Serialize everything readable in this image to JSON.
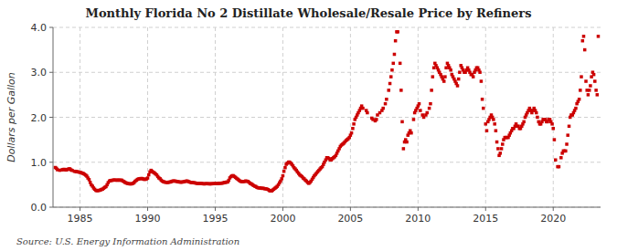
{
  "chart_data": {
    "type": "scatter",
    "title": "Monthly Florida No 2 Distillate Wholesale/Resale Price by Refiners",
    "y_label": "Dollars per Gallon",
    "annotation": "Source: U.S. Energy Information Administration",
    "color": "#cc0000",
    "marker": "square",
    "grid": true,
    "xlim": [
      1983.0,
      2023.5
    ],
    "xticks": [
      1985,
      1990,
      1995,
      2000,
      2005,
      2010,
      2015,
      2020
    ],
    "ylim": [
      0.0,
      4.0
    ],
    "yticks": [
      {
        "value": 0.0,
        "label": "0.0"
      },
      {
        "value": 1.0,
        "label": "1.0"
      },
      {
        "value": 2.0,
        "label": "2.0"
      },
      {
        "value": 3.0,
        "label": "3.0"
      },
      {
        "value": 4.0,
        "label": "4.0"
      }
    ],
    "x": [
      1983.17,
      1983.25,
      1983.33,
      1983.5,
      1983.67,
      1983.75,
      1983.83,
      1983.92,
      1984.0,
      1984.08,
      1984.17,
      1984.25,
      1984.33,
      1984.42,
      1984.58,
      1984.67,
      1984.75,
      1984.83,
      1984.92,
      1985.0,
      1985.08,
      1985.17,
      1985.25,
      1985.33,
      1985.42,
      1985.5,
      1985.58,
      1985.67,
      1985.75,
      1985.83,
      1985.92,
      1986.0,
      1986.08,
      1986.17,
      1986.25,
      1986.33,
      1986.42,
      1986.5,
      1986.58,
      1986.67,
      1986.75,
      1986.83,
      1986.92,
      1987.0,
      1987.08,
      1987.17,
      1987.25,
      1987.33,
      1987.42,
      1987.5,
      1987.58,
      1987.67,
      1987.75,
      1987.83,
      1987.92,
      1988.0,
      1988.08,
      1988.17,
      1988.25,
      1988.33,
      1988.42,
      1988.5,
      1988.58,
      1988.67,
      1988.75,
      1988.83,
      1988.92,
      1989.0,
      1989.08,
      1989.17,
      1989.25,
      1989.33,
      1989.42,
      1989.5,
      1989.58,
      1989.67,
      1989.75,
      1989.83,
      1989.92,
      1990.0,
      1990.08,
      1990.17,
      1990.25,
      1990.33,
      1990.42,
      1990.5,
      1990.58,
      1990.67,
      1990.75,
      1990.83,
      1990.92,
      1991.0,
      1991.08,
      1991.17,
      1991.25,
      1991.33,
      1991.42,
      1991.5,
      1991.58,
      1991.67,
      1991.75,
      1991.83,
      1991.92,
      1992.0,
      1992.08,
      1992.17,
      1992.25,
      1992.33,
      1992.42,
      1992.5,
      1992.58,
      1992.67,
      1992.75,
      1992.83,
      1992.92,
      1993.0,
      1993.08,
      1993.17,
      1993.25,
      1993.33,
      1993.42,
      1993.5,
      1993.58,
      1993.67,
      1993.75,
      1993.83,
      1993.92,
      1994.0,
      1994.08,
      1994.17,
      1994.25,
      1994.33,
      1994.42,
      1994.5,
      1994.58,
      1994.67,
      1994.75,
      1994.83,
      1994.92,
      1995.0,
      1995.08,
      1995.17,
      1995.25,
      1995.33,
      1995.42,
      1995.5,
      1995.58,
      1995.67,
      1995.75,
      1995.83,
      1995.92,
      1996.0,
      1996.08,
      1996.17,
      1996.25,
      1996.33,
      1996.42,
      1996.5,
      1996.58,
      1996.67,
      1996.75,
      1996.83,
      1996.92,
      1997.0,
      1997.08,
      1997.17,
      1997.25,
      1997.33,
      1997.42,
      1997.5,
      1997.58,
      1997.67,
      1997.75,
      1997.83,
      1997.92,
      1998.0,
      1998.08,
      1998.17,
      1998.25,
      1998.33,
      1998.42,
      1998.5,
      1998.58,
      1998.67,
      1998.75,
      1998.83,
      1998.92,
      1999.0,
      1999.08,
      1999.17,
      1999.25,
      1999.33,
      1999.42,
      1999.5,
      1999.58,
      1999.67,
      1999.75,
      1999.83,
      1999.92,
      2000.0,
      2000.08,
      2000.17,
      2000.25,
      2000.33,
      2000.42,
      2000.5,
      2000.58,
      2000.67,
      2000.75,
      2000.83,
      2000.92,
      2001.0,
      2001.08,
      2001.17,
      2001.25,
      2001.33,
      2001.42,
      2001.5,
      2001.58,
      2001.67,
      2001.75,
      2001.83,
      2001.92,
      2002.0,
      2002.08,
      2002.17,
      2002.25,
      2002.33,
      2002.42,
      2002.5,
      2002.58,
      2002.67,
      2002.75,
      2002.83,
      2002.92,
      2003.0,
      2003.08,
      2003.17,
      2003.25,
      2003.33,
      2003.42,
      2003.5,
      2003.58,
      2003.67,
      2003.75,
      2003.83,
      2003.92,
      2004.0,
      2004.08,
      2004.17,
      2004.25,
      2004.33,
      2004.42,
      2004.5,
      2004.58,
      2004.67,
      2004.75,
      2004.83,
      2004.92,
      2005.0,
      2005.08,
      2005.17,
      2005.25,
      2005.33,
      2005.42,
      2005.5,
      2005.58,
      2005.67,
      2005.75,
      2005.83,
      2005.92,
      2006.17,
      2006.25,
      2006.58,
      2006.67,
      2006.83,
      2006.92,
      2007.0,
      2007.17,
      2007.33,
      2007.42,
      2007.58,
      2007.67,
      2007.83,
      2007.92,
      2008.0,
      2008.08,
      2008.17,
      2008.25,
      2008.33,
      2008.42,
      2008.5,
      2008.67,
      2008.75,
      2008.83,
      2008.92,
      2009.0,
      2009.08,
      2009.17,
      2009.25,
      2009.33,
      2009.42,
      2009.5,
      2009.67,
      2009.75,
      2009.83,
      2009.92,
      2010.0,
      2010.08,
      2010.17,
      2010.33,
      2010.42,
      2010.58,
      2010.67,
      2010.83,
      2010.92,
      2011.0,
      2011.08,
      2011.17,
      2011.25,
      2011.33,
      2011.42,
      2011.5,
      2011.58,
      2011.67,
      2011.75,
      2011.83,
      2011.92,
      2012.0,
      2012.08,
      2012.17,
      2012.25,
      2012.33,
      2012.42,
      2012.5,
      2012.58,
      2012.67,
      2012.75,
      2012.83,
      2012.92,
      2013.0,
      2013.08,
      2013.17,
      2013.25,
      2013.33,
      2013.42,
      2013.5,
      2013.58,
      2013.67,
      2013.75,
      2013.83,
      2013.92,
      2014.0,
      2014.08,
      2014.17,
      2014.25,
      2014.33,
      2014.42,
      2014.5,
      2014.58,
      2014.67,
      2014.75,
      2014.83,
      2015.0,
      2015.08,
      2015.17,
      2015.25,
      2015.33,
      2015.42,
      2015.5,
      2015.58,
      2015.67,
      2015.75,
      2015.83,
      2015.92,
      2016.0,
      2016.08,
      2016.17,
      2016.25,
      2016.33,
      2016.42,
      2016.5,
      2016.58,
      2016.67,
      2016.75,
      2016.83,
      2016.92,
      2017.0,
      2017.08,
      2017.17,
      2017.25,
      2017.33,
      2017.42,
      2017.5,
      2017.58,
      2017.67,
      2017.75,
      2017.83,
      2017.92,
      2018.0,
      2018.08,
      2018.17,
      2018.25,
      2018.33,
      2018.42,
      2018.5,
      2018.58,
      2018.67,
      2018.75,
      2018.83,
      2018.92,
      2019.0,
      2019.08,
      2019.17,
      2019.25,
      2019.33,
      2019.42,
      2019.5,
      2019.58,
      2019.67,
      2019.75,
      2019.83,
      2019.92,
      2020.0,
      2020.08,
      2020.17,
      2020.33,
      2020.42,
      2020.58,
      2020.67,
      2020.75,
      2020.83,
      2020.92,
      2021.0,
      2021.08,
      2021.17,
      2021.25,
      2021.33,
      2021.42,
      2021.5,
      2021.58,
      2021.67,
      2021.75,
      2021.83,
      2021.92,
      2022.0,
      2022.08,
      2022.17,
      2022.25,
      2022.33,
      2022.42,
      2022.5,
      2022.58,
      2022.67,
      2022.75,
      2022.83,
      2022.92,
      2023.0,
      2023.08,
      2023.17,
      2023.25,
      2023.33
    ],
    "values": [
      0.883,
      0.864,
      0.833,
      0.821,
      0.831,
      0.839,
      0.842,
      0.832,
      0.83,
      0.841,
      0.852,
      0.852,
      0.831,
      0.818,
      0.798,
      0.798,
      0.788,
      0.787,
      0.779,
      0.777,
      0.769,
      0.756,
      0.748,
      0.732,
      0.713,
      0.69,
      0.649,
      0.612,
      0.551,
      0.498,
      0.468,
      0.428,
      0.399,
      0.375,
      0.367,
      0.372,
      0.374,
      0.38,
      0.394,
      0.403,
      0.422,
      0.442,
      0.458,
      0.499,
      0.547,
      0.582,
      0.592,
      0.596,
      0.6,
      0.604,
      0.603,
      0.601,
      0.6,
      0.603,
      0.601,
      0.6,
      0.601,
      0.582,
      0.57,
      0.551,
      0.539,
      0.529,
      0.523,
      0.519,
      0.518,
      0.521,
      0.53,
      0.549,
      0.578,
      0.599,
      0.618,
      0.628,
      0.635,
      0.637,
      0.638,
      0.629,
      0.619,
      0.62,
      0.629,
      0.649,
      0.72,
      0.784,
      0.82,
      0.8,
      0.778,
      0.762,
      0.74,
      0.718,
      0.682,
      0.651,
      0.633,
      0.601,
      0.58,
      0.568,
      0.559,
      0.554,
      0.552,
      0.55,
      0.558,
      0.56,
      0.569,
      0.579,
      0.584,
      0.58,
      0.578,
      0.573,
      0.568,
      0.561,
      0.558,
      0.557,
      0.56,
      0.566,
      0.573,
      0.579,
      0.583,
      0.573,
      0.562,
      0.553,
      0.549,
      0.549,
      0.543,
      0.54,
      0.534,
      0.531,
      0.529,
      0.53,
      0.529,
      0.528,
      0.522,
      0.518,
      0.521,
      0.523,
      0.522,
      0.521,
      0.519,
      0.519,
      0.521,
      0.523,
      0.523,
      0.525,
      0.524,
      0.523,
      0.53,
      0.534,
      0.533,
      0.534,
      0.54,
      0.549,
      0.551,
      0.558,
      0.561,
      0.597,
      0.652,
      0.681,
      0.699,
      0.701,
      0.682,
      0.663,
      0.641,
      0.622,
      0.601,
      0.583,
      0.571,
      0.57,
      0.572,
      0.573,
      0.583,
      0.578,
      0.573,
      0.554,
      0.53,
      0.519,
      0.501,
      0.483,
      0.468,
      0.46,
      0.441,
      0.431,
      0.43,
      0.429,
      0.42,
      0.419,
      0.419,
      0.411,
      0.409,
      0.401,
      0.391,
      0.371,
      0.362,
      0.361,
      0.382,
      0.401,
      0.422,
      0.441,
      0.464,
      0.499,
      0.541,
      0.58,
      0.632,
      0.699,
      0.798,
      0.879,
      0.953,
      0.979,
      1.003,
      1.003,
      0.98,
      0.952,
      0.918,
      0.878,
      0.851,
      0.82,
      0.784,
      0.752,
      0.719,
      0.7,
      0.68,
      0.649,
      0.631,
      0.6,
      0.58,
      0.551,
      0.53,
      0.551,
      0.58,
      0.621,
      0.66,
      0.7,
      0.731,
      0.761,
      0.791,
      0.82,
      0.85,
      0.878,
      0.901,
      0.951,
      1.002,
      1.051,
      1.101,
      1.101,
      1.081,
      1.052,
      1.052,
      1.081,
      1.101,
      1.121,
      1.151,
      1.201,
      1.251,
      1.301,
      1.351,
      1.381,
      1.401,
      1.421,
      1.451,
      1.481,
      1.501,
      1.521,
      1.551,
      1.601,
      1.651,
      1.751,
      1.851,
      1.951,
      2.001,
      2.051,
      2.101,
      2.151,
      2.201,
      2.251,
      2.201,
      2.151,
      2.101,
      1.981,
      1.951,
      1.921,
      1.951,
      2.051,
      2.101,
      2.151,
      2.201,
      2.301,
      2.401,
      2.601,
      2.751,
      2.901,
      3.051,
      3.201,
      3.401,
      3.701,
      3.901,
      3.901,
      3.201,
      2.601,
      1.901,
      1.301,
      1.451,
      1.501,
      1.451,
      1.601,
      1.651,
      1.701,
      1.651,
      1.951,
      2.101,
      2.151,
      2.201,
      2.251,
      2.301,
      2.151,
      2.051,
      2.001,
      2.051,
      2.101,
      2.201,
      2.301,
      2.601,
      2.901,
      3.101,
      3.201,
      3.151,
      3.101,
      3.051,
      3.001,
      2.951,
      2.901,
      2.851,
      2.801,
      2.901,
      3.101,
      3.201,
      3.151,
      3.101,
      3.051,
      2.951,
      2.901,
      2.851,
      2.801,
      2.751,
      2.701,
      2.851,
      3.001,
      3.151,
      3.101,
      3.051,
      3.001,
      3.001,
      3.051,
      3.101,
      3.051,
      3.001,
      2.951,
      2.951,
      2.901,
      3.001,
      3.051,
      3.101,
      3.101,
      3.051,
      3.001,
      2.801,
      2.401,
      2.201,
      1.851,
      1.701,
      1.901,
      1.951,
      2.001,
      2.051,
      2.001,
      1.951,
      1.851,
      1.701,
      1.451,
      1.301,
      1.151,
      1.201,
      1.301,
      1.401,
      1.501,
      1.551,
      1.551,
      1.551,
      1.551,
      1.601,
      1.651,
      1.701,
      1.751,
      1.751,
      1.801,
      1.851,
      1.801,
      1.801,
      1.751,
      1.751,
      1.801,
      1.851,
      1.901,
      2.001,
      2.051,
      2.101,
      2.151,
      2.201,
      2.151,
      2.101,
      2.151,
      2.201,
      2.151,
      2.101,
      2.001,
      1.901,
      1.851,
      1.851,
      1.901,
      1.951,
      1.951,
      1.951,
      1.901,
      1.901,
      1.951,
      1.951,
      1.901,
      1.851,
      1.751,
      1.501,
      1.051,
      0.901,
      0.901,
      1.101,
      1.201,
      1.251,
      1.251,
      1.251,
      1.401,
      1.601,
      1.801,
      2.001,
      2.051,
      2.051,
      2.101,
      2.151,
      2.201,
      2.301,
      2.351,
      2.401,
      2.601,
      2.901,
      3.701,
      3.801,
      3.501,
      2.801,
      2.601,
      2.501,
      2.601,
      2.701,
      2.901,
      3.001,
      2.951,
      2.801,
      2.601,
      2.501,
      3.801
    ]
  }
}
